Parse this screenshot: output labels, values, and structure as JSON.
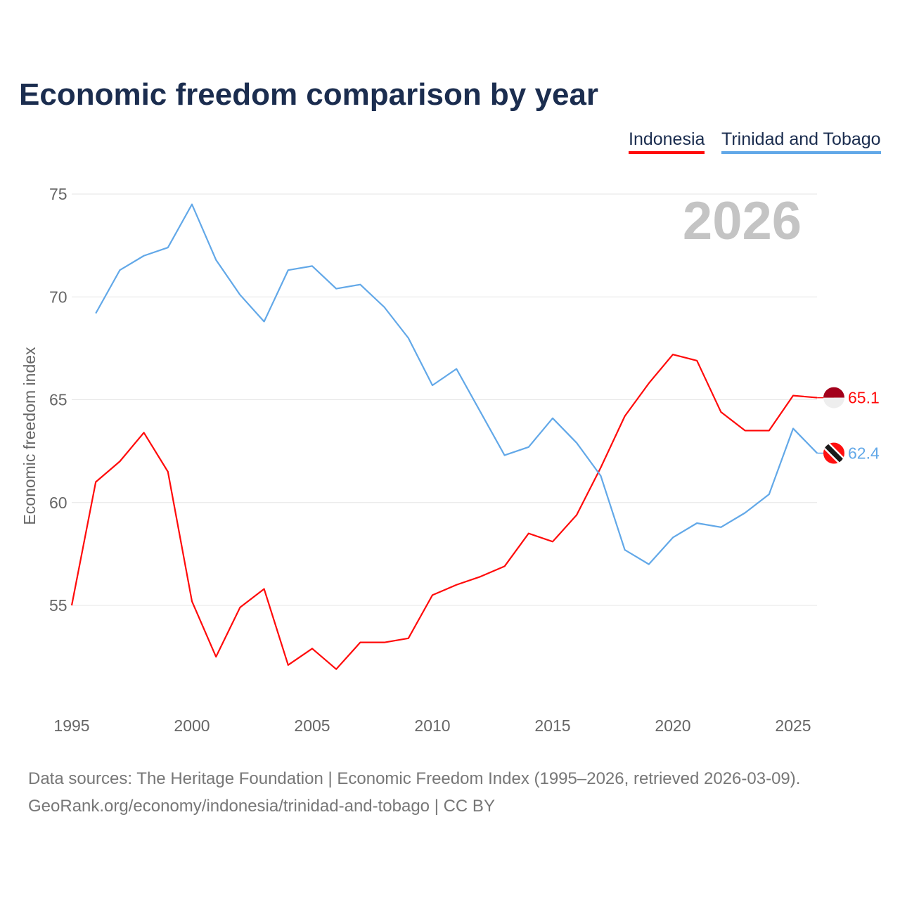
{
  "chart_data": {
    "type": "line",
    "title": "Economic freedom comparison by year",
    "xlabel": "",
    "ylabel": "Economic freedom index",
    "year_watermark": "2026",
    "xlim": [
      1995,
      2026
    ],
    "ylim": [
      50,
      75
    ],
    "xticks": [
      "1995",
      "2000",
      "2005",
      "2010",
      "2015",
      "2020",
      "2025"
    ],
    "yticks": [
      "55",
      "60",
      "65",
      "70",
      "75"
    ],
    "legend_position": "top-right",
    "series": [
      {
        "name": "Indonesia",
        "color": "#ff0a0a",
        "end_label": "65.1",
        "x": [
          1995,
          1996,
          1997,
          1998,
          1999,
          2000,
          2001,
          2002,
          2003,
          2004,
          2005,
          2006,
          2007,
          2008,
          2009,
          2010,
          2011,
          2012,
          2013,
          2014,
          2015,
          2016,
          2017,
          2018,
          2019,
          2020,
          2021,
          2022,
          2023,
          2024,
          2025,
          2026
        ],
        "values": [
          55.0,
          61.0,
          62.0,
          63.4,
          61.5,
          55.2,
          52.5,
          54.9,
          55.8,
          52.1,
          52.9,
          51.9,
          53.2,
          53.2,
          53.4,
          55.5,
          56.0,
          56.4,
          56.9,
          58.5,
          58.1,
          59.4,
          61.7,
          64.2,
          65.8,
          67.2,
          66.9,
          64.4,
          63.5,
          63.5,
          65.2,
          65.1
        ]
      },
      {
        "name": "Trinidad and Tobago",
        "color": "#62a8e8",
        "end_label": "62.4",
        "x": [
          1996,
          1997,
          1998,
          1999,
          2000,
          2001,
          2002,
          2003,
          2004,
          2005,
          2006,
          2007,
          2008,
          2009,
          2010,
          2011,
          2012,
          2013,
          2014,
          2015,
          2016,
          2017,
          2018,
          2019,
          2020,
          2021,
          2022,
          2023,
          2024,
          2025,
          2026
        ],
        "values": [
          69.2,
          71.3,
          72.0,
          72.4,
          74.5,
          71.8,
          70.1,
          68.8,
          71.3,
          71.5,
          70.4,
          70.6,
          69.5,
          68.0,
          65.7,
          66.5,
          64.4,
          62.3,
          62.7,
          64.1,
          62.9,
          61.3,
          57.7,
          57.0,
          58.3,
          59.0,
          58.8,
          59.5,
          60.4,
          63.6,
          62.4
        ]
      }
    ]
  },
  "source_line1": "Data sources: The Heritage Foundation | Economic Freedom Index (1995–2026, retrieved 2026-03-09).",
  "source_line2": "GeoRank.org/economy/indonesia/trinidad-and-tobago | CC BY"
}
